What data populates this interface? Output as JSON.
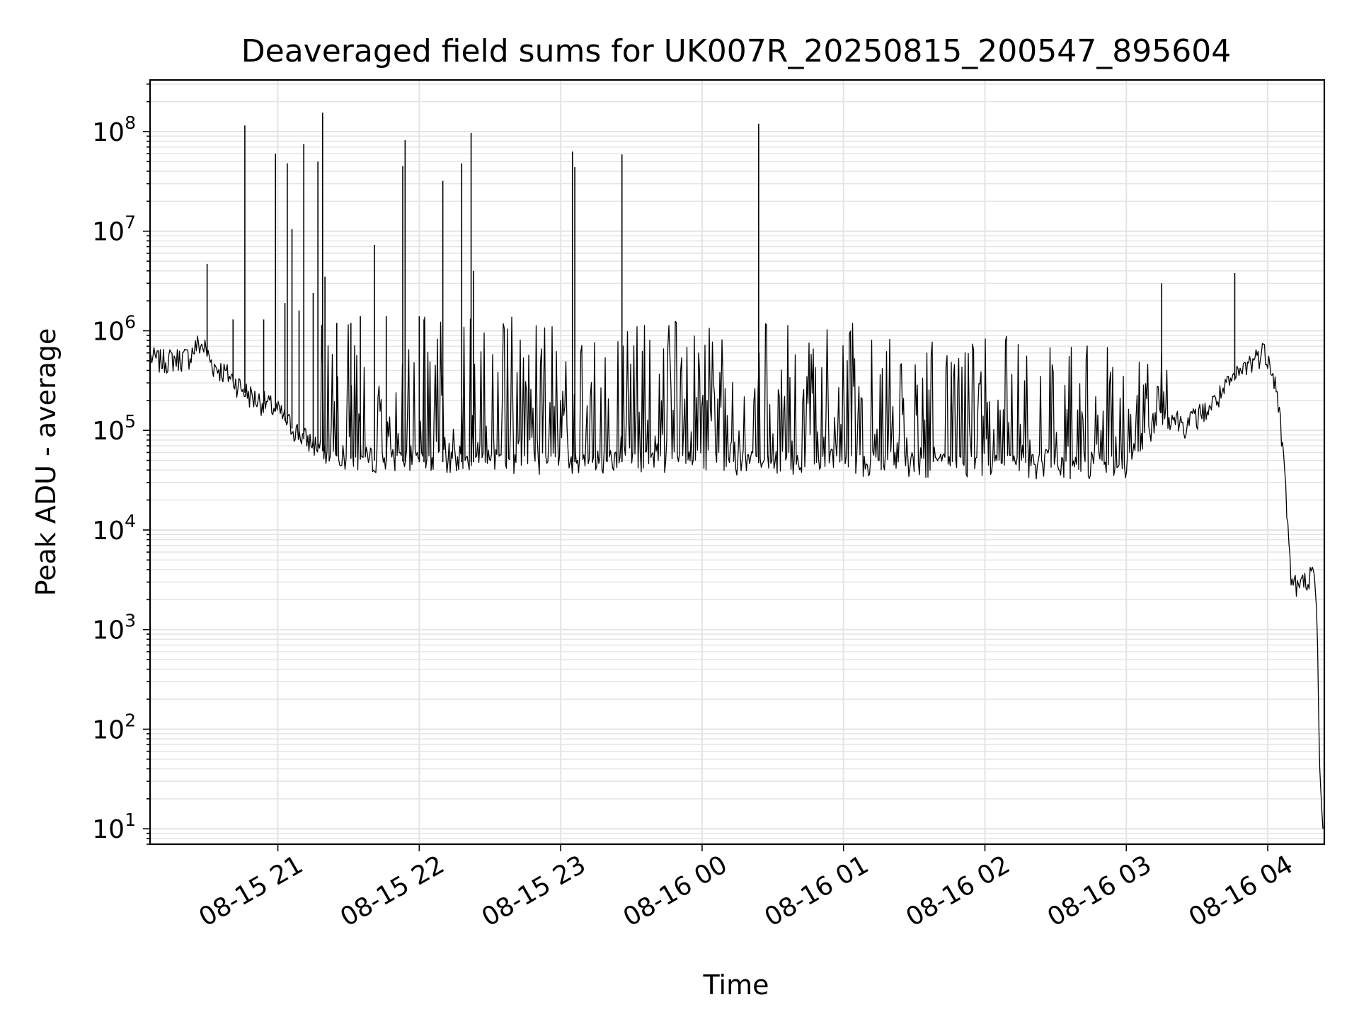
{
  "chart_data": {
    "type": "line",
    "title": "Deaveraged field sums for UK007R_20250815_200547_895604",
    "xlabel": "Time",
    "ylabel": "Peak ADU - average",
    "y_scale": "log",
    "ylim": [
      7,
      330000000
    ],
    "xlim": [
      "2025-08-15T20:05:47",
      "2025-08-16T04:24:00"
    ],
    "x_ticks": [
      {
        "t": "2025-08-15T21:00",
        "label": "08-15 21"
      },
      {
        "t": "2025-08-15T22:00",
        "label": "08-15 22"
      },
      {
        "t": "2025-08-15T23:00",
        "label": "08-15 23"
      },
      {
        "t": "2025-08-16T00:00",
        "label": "08-16 00"
      },
      {
        "t": "2025-08-16T01:00",
        "label": "08-16 01"
      },
      {
        "t": "2025-08-16T02:00",
        "label": "08-16 02"
      },
      {
        "t": "2025-08-16T03:00",
        "label": "08-16 03"
      },
      {
        "t": "2025-08-16T04:00",
        "label": "08-16 04"
      }
    ],
    "y_ticks": [
      {
        "value": 10,
        "base": "10",
        "exp": "1"
      },
      {
        "value": 100,
        "base": "10",
        "exp": "2"
      },
      {
        "value": 1000,
        "base": "10",
        "exp": "3"
      },
      {
        "value": 10000,
        "base": "10",
        "exp": "4"
      },
      {
        "value": 100000,
        "base": "10",
        "exp": "5"
      },
      {
        "value": 1000000,
        "base": "10",
        "exp": "6"
      },
      {
        "value": 10000000,
        "base": "10",
        "exp": "7"
      },
      {
        "value": 100000000,
        "base": "10",
        "exp": "8"
      }
    ],
    "grid": true,
    "line_color": "#000000",
    "grid_color": "#e4e4e4",
    "series": [
      {
        "x": [
          "2025-08-15T20:06",
          "2025-08-15T20:10",
          "2025-08-15T20:16",
          "2025-08-15T20:22",
          "2025-08-15T20:26",
          "2025-08-15T20:29",
          "2025-08-15T20:31",
          "2025-08-15T20:33",
          "2025-08-15T20:35",
          "2025-08-15T20:40",
          "2025-08-15T20:45",
          "2025-08-15T20:50",
          "2025-08-15T20:55",
          "2025-08-15T21:00",
          "2025-08-15T21:05",
          "2025-08-15T21:10",
          "2025-08-15T21:15",
          "2025-08-15T21:20",
          "2025-08-15T21:25",
          "2025-08-15T21:30",
          "2025-08-15T21:40",
          "2025-08-15T21:50",
          "2025-08-15T22:00",
          "2025-08-15T22:30",
          "2025-08-15T23:00",
          "2025-08-15T23:30",
          "2025-08-16T00:00",
          "2025-08-16T00:30",
          "2025-08-16T01:00",
          "2025-08-16T01:30",
          "2025-08-16T02:00",
          "2025-08-16T02:30",
          "2025-08-16T03:00",
          "2025-08-16T03:15",
          "2025-08-16T03:25",
          "2025-08-16T03:35",
          "2025-08-16T03:45",
          "2025-08-16T03:52",
          "2025-08-16T03:58",
          "2025-08-16T04:01",
          "2025-08-16T04:03",
          "2025-08-16T04:05",
          "2025-08-16T04:07",
          "2025-08-16T04:10",
          "2025-08-16T04:13",
          "2025-08-16T04:16",
          "2025-08-16T04:18",
          "2025-08-16T04:20",
          "2025-08-16T04:21",
          "2025-08-16T04:22",
          "2025-08-16T04:23"
        ],
        "values": [
          520000,
          480000,
          500000,
          520000,
          700000,
          650000,
          500000,
          420000,
          400000,
          330000,
          250000,
          200000,
          180000,
          150000,
          110000,
          85000,
          70000,
          60000,
          55000,
          52000,
          50000,
          49000,
          48000,
          48000,
          48000,
          48000,
          47000,
          47000,
          46000,
          45000,
          44000,
          42000,
          44000,
          150000,
          110000,
          160000,
          300000,
          450000,
          600000,
          500000,
          300000,
          150000,
          40000,
          3000,
          2500,
          3000,
          3500,
          3000,
          900,
          40,
          12
        ],
        "spikes": [
          {
            "t": "2025-08-15T20:30",
            "peak": 4700000
          },
          {
            "t": "2025-08-15T20:41",
            "peak": 1300000
          },
          {
            "t": "2025-08-15T20:46",
            "peak": 115000000
          },
          {
            "t": "2025-08-15T20:54",
            "peak": 1300000
          },
          {
            "t": "2025-08-15T20:59",
            "peak": 60000000
          },
          {
            "t": "2025-08-15T21:03",
            "peak": 1900000
          },
          {
            "t": "2025-08-15T21:04",
            "peak": 48000000
          },
          {
            "t": "2025-08-15T21:06",
            "peak": 10500000
          },
          {
            "t": "2025-08-15T21:09",
            "peak": 1600000
          },
          {
            "t": "2025-08-15T21:11",
            "peak": 75000000
          },
          {
            "t": "2025-08-15T21:15",
            "peak": 2400000
          },
          {
            "t": "2025-08-15T21:17",
            "peak": 50000000
          },
          {
            "t": "2025-08-15T21:19",
            "peak": 155000000
          },
          {
            "t": "2025-08-15T21:20",
            "peak": 3500000
          },
          {
            "t": "2025-08-15T21:25",
            "peak": 1200000
          },
          {
            "t": "2025-08-15T21:31",
            "peak": 1200000
          },
          {
            "t": "2025-08-15T21:35",
            "peak": 1400000
          },
          {
            "t": "2025-08-15T21:41",
            "peak": 7300000
          },
          {
            "t": "2025-08-15T21:46",
            "peak": 1400000
          },
          {
            "t": "2025-08-15T21:53",
            "peak": 45000000
          },
          {
            "t": "2025-08-15T21:54",
            "peak": 82000000
          },
          {
            "t": "2025-08-15T22:00",
            "peak": 1400000
          },
          {
            "t": "2025-08-15T22:02",
            "peak": 1300000
          },
          {
            "t": "2025-08-15T22:10",
            "peak": 32000000
          },
          {
            "t": "2025-08-15T22:18",
            "peak": 48000000
          },
          {
            "t": "2025-08-15T22:22",
            "peak": 97000000
          },
          {
            "t": "2025-08-15T22:23",
            "peak": 4000000
          },
          {
            "t": "2025-08-15T23:05",
            "peak": 63000000
          },
          {
            "t": "2025-08-15T23:06",
            "peak": 44000000
          },
          {
            "t": "2025-08-15T23:26",
            "peak": 59000000
          },
          {
            "t": "2025-08-16T00:24",
            "peak": 120000000
          },
          {
            "t": "2025-08-16T03:15",
            "peak": 3000000
          },
          {
            "t": "2025-08-16T03:46",
            "peak": 3800000
          }
        ]
      }
    ]
  }
}
